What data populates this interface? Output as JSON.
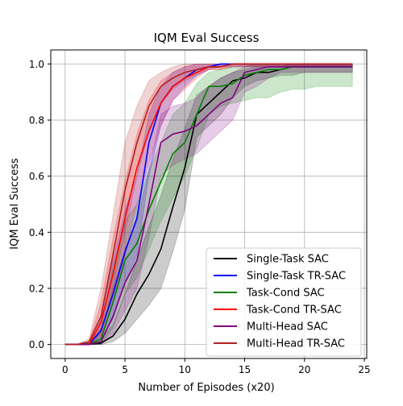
{
  "chart_data": {
    "type": "line",
    "title": "IQM Eval Success",
    "xlabel": "Number of Episodes (x20)",
    "ylabel": "IQM Eval Success",
    "xlim": [
      -1.2,
      25.2
    ],
    "ylim": [
      -0.05,
      1.05
    ],
    "xticks": [
      0,
      5,
      10,
      15,
      20,
      25
    ],
    "yticks": [
      0.0,
      0.2,
      0.4,
      0.6,
      0.8,
      1.0
    ],
    "xtick_labels": [
      "0",
      "5",
      "10",
      "15",
      "20",
      "25"
    ],
    "ytick_labels": [
      "0.0",
      "0.2",
      "0.4",
      "0.6",
      "0.8",
      "1.0"
    ],
    "grid": true,
    "legend_position": "lower-right",
    "x": [
      0,
      1,
      2,
      3,
      4,
      5,
      6,
      7,
      8,
      9,
      10,
      11,
      12,
      13,
      14,
      15,
      16,
      17,
      18,
      19,
      20,
      21,
      22,
      23,
      24
    ],
    "series": [
      {
        "name": "Single-Task SAC",
        "color": "#000000",
        "values": [
          0,
          0,
          0,
          0.005,
          0.03,
          0.09,
          0.18,
          0.25,
          0.34,
          0.49,
          0.63,
          0.82,
          0.86,
          0.9,
          0.94,
          0.95,
          0.97,
          0.97,
          0.98,
          0.99,
          0.99,
          0.99,
          0.99,
          0.99,
          0.99
        ],
        "lower": [
          0,
          0,
          0,
          0,
          0.01,
          0.04,
          0.09,
          0.14,
          0.2,
          0.33,
          0.48,
          0.74,
          0.78,
          0.82,
          0.88,
          0.92,
          0.94,
          0.95,
          0.96,
          0.96,
          0.97,
          0.97,
          0.97,
          0.97,
          0.97
        ],
        "upper": [
          0,
          0,
          0.005,
          0.02,
          0.07,
          0.18,
          0.3,
          0.42,
          0.53,
          0.66,
          0.77,
          0.89,
          0.92,
          0.95,
          0.97,
          0.98,
          0.99,
          0.99,
          0.99,
          1,
          1,
          1,
          1,
          1,
          1
        ]
      },
      {
        "name": "Single-Task TR-SAC",
        "color": "#0000ff",
        "values": [
          0,
          0,
          0,
          0.05,
          0.18,
          0.33,
          0.45,
          0.72,
          0.86,
          0.92,
          0.95,
          0.98,
          0.99,
          1,
          1,
          1,
          1,
          1,
          1,
          1,
          1,
          1,
          1,
          1,
          1
        ],
        "lower": [
          0,
          0,
          0,
          0.02,
          0.09,
          0.22,
          0.32,
          0.6,
          0.78,
          0.87,
          0.92,
          0.96,
          0.98,
          0.99,
          0.99,
          0.99,
          0.99,
          0.99,
          0.99,
          0.99,
          0.99,
          0.99,
          0.99,
          0.99,
          0.99
        ],
        "upper": [
          0,
          0,
          0.01,
          0.1,
          0.3,
          0.48,
          0.6,
          0.82,
          0.92,
          0.97,
          0.99,
          1,
          1,
          1,
          1,
          1,
          1,
          1,
          1,
          1,
          1,
          1,
          1,
          1,
          1
        ]
      },
      {
        "name": "Task-Cond SAC",
        "color": "#008000",
        "values": [
          0,
          0,
          0,
          0.02,
          0.15,
          0.3,
          0.36,
          0.48,
          0.58,
          0.68,
          0.72,
          0.82,
          0.92,
          0.92,
          0.93,
          0.96,
          0.97,
          0.98,
          0.98,
          0.99,
          0.99,
          0.99,
          0.99,
          0.99,
          0.99
        ],
        "lower": [
          0,
          0,
          0,
          0,
          0.06,
          0.18,
          0.24,
          0.34,
          0.44,
          0.52,
          0.6,
          0.7,
          0.82,
          0.85,
          0.86,
          0.87,
          0.88,
          0.88,
          0.9,
          0.91,
          0.91,
          0.92,
          0.92,
          0.92,
          0.92
        ],
        "upper": [
          0,
          0,
          0.005,
          0.06,
          0.28,
          0.44,
          0.5,
          0.62,
          0.72,
          0.82,
          0.86,
          0.93,
          0.97,
          0.98,
          0.99,
          0.99,
          1,
          1,
          1,
          1,
          1,
          1,
          1,
          1,
          1
        ]
      },
      {
        "name": "Task-Cond TR-SAC",
        "color": "#ff0000",
        "values": [
          0,
          0,
          0,
          0.08,
          0.25,
          0.45,
          0.63,
          0.76,
          0.86,
          0.92,
          0.95,
          0.97,
          0.99,
          0.99,
          1,
          1,
          1,
          1,
          1,
          1,
          1,
          1,
          1,
          1,
          1
        ],
        "lower": [
          0,
          0,
          0,
          0.03,
          0.15,
          0.32,
          0.5,
          0.65,
          0.78,
          0.87,
          0.91,
          0.95,
          0.98,
          0.98,
          0.99,
          0.99,
          0.99,
          0.99,
          0.99,
          0.99,
          0.99,
          0.99,
          0.99,
          0.99,
          0.99
        ],
        "upper": [
          0,
          0,
          0.01,
          0.15,
          0.38,
          0.58,
          0.75,
          0.87,
          0.94,
          0.97,
          0.99,
          1,
          1,
          1,
          1,
          1,
          1,
          1,
          1,
          1,
          1,
          1,
          1,
          1,
          1
        ]
      },
      {
        "name": "Multi-Head SAC",
        "color": "#800080",
        "values": [
          0,
          0,
          0,
          0.01,
          0.1,
          0.22,
          0.3,
          0.5,
          0.72,
          0.75,
          0.76,
          0.78,
          0.82,
          0.86,
          0.88,
          0.97,
          0.98,
          0.99,
          0.99,
          0.99,
          0.99,
          0.99,
          0.99,
          0.99,
          0.99
        ],
        "lower": [
          0,
          0,
          0,
          0,
          0.04,
          0.12,
          0.2,
          0.38,
          0.6,
          0.64,
          0.66,
          0.68,
          0.72,
          0.76,
          0.8,
          0.9,
          0.92,
          0.95,
          0.97,
          0.97,
          0.97,
          0.97,
          0.97,
          0.97,
          0.97
        ],
        "upper": [
          0,
          0,
          0.005,
          0.04,
          0.2,
          0.34,
          0.44,
          0.62,
          0.82,
          0.85,
          0.86,
          0.88,
          0.92,
          0.95,
          0.97,
          0.99,
          1,
          1,
          1,
          1,
          1,
          1,
          1,
          1,
          1
        ]
      },
      {
        "name": "Multi-Head TR-SAC",
        "color": "#b22222",
        "values": [
          0,
          0,
          0.01,
          0.1,
          0.32,
          0.55,
          0.72,
          0.85,
          0.92,
          0.95,
          0.97,
          0.98,
          0.99,
          0.99,
          1,
          1,
          1,
          1,
          1,
          1,
          1,
          1,
          1,
          1,
          1
        ],
        "lower": [
          0,
          0,
          0,
          0.04,
          0.2,
          0.4,
          0.6,
          0.76,
          0.86,
          0.91,
          0.94,
          0.96,
          0.98,
          0.98,
          0.99,
          0.99,
          0.99,
          0.99,
          0.99,
          0.99,
          0.99,
          0.99,
          0.99,
          0.99,
          0.99
        ],
        "upper": [
          0,
          0,
          0.02,
          0.2,
          0.46,
          0.72,
          0.85,
          0.94,
          0.97,
          0.99,
          1,
          1,
          1,
          1,
          1,
          1,
          1,
          1,
          1,
          1,
          1,
          1,
          1,
          1,
          1
        ]
      }
    ]
  }
}
